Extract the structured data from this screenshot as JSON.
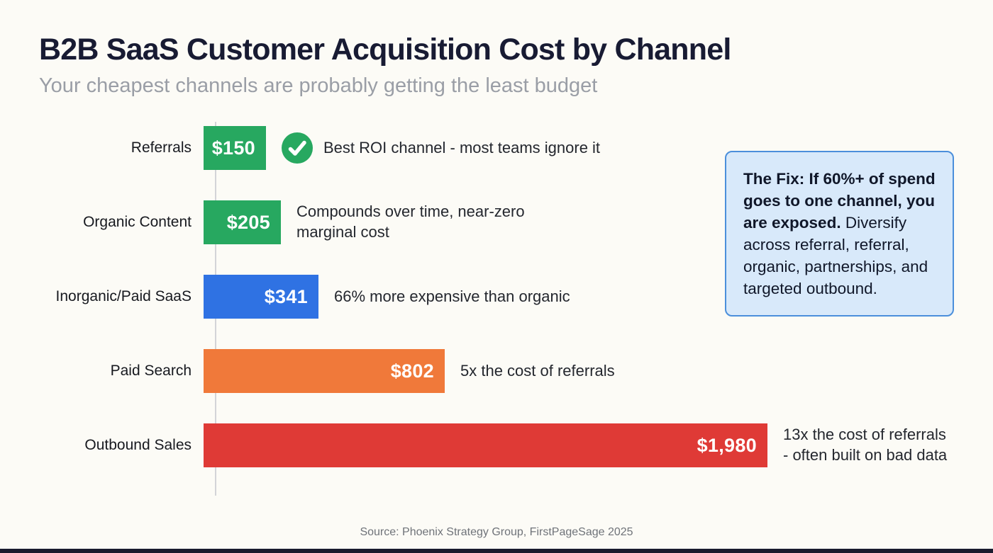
{
  "page": {
    "title": "B2B SaaS Customer Acquisition Cost by Channel",
    "subtitle": "Your cheapest channels are probably getting the least budget",
    "source": "Source: Phoenix Strategy Group, FirstPageSage 2025"
  },
  "colors": {
    "green": "#27a860",
    "blue": "#2f72e3",
    "orange": "#f0793a",
    "red": "#df3a36",
    "callout_bg": "#d8e9fa",
    "callout_border": "#4b8fdb",
    "title_text": "#181b33",
    "subtitle_text": "#9a9ea6"
  },
  "chart_data": {
    "type": "bar",
    "orientation": "horizontal",
    "title": "B2B SaaS Customer Acquisition Cost by Channel",
    "xlabel": "",
    "ylabel": "",
    "xlim": [
      0,
      1980
    ],
    "grid": false,
    "legend": "none",
    "categories": [
      "Referrals",
      "Organic Content",
      "Inorganic/Paid SaaS",
      "Paid Search",
      "Outbound Sales"
    ],
    "values": [
      150,
      205,
      341,
      802,
      1980
    ],
    "value_labels": [
      "$150",
      "$205",
      "$341",
      "$802",
      "$1,980"
    ],
    "bar_colors": [
      "#27a860",
      "#27a860",
      "#2f72e3",
      "#f0793a",
      "#df3a36"
    ],
    "annotation_icons": [
      "check-icon",
      "",
      "",
      "",
      ""
    ],
    "annotations": [
      "Best ROI channel - most teams ignore it",
      "Compounds over time, near-zero marginal cost",
      "66% more expensive than organic",
      "5x the cost of referrals",
      "13x the cost of referrals - often built on bad data"
    ]
  },
  "callout": {
    "bold_text": "The Fix: If 60%+ of spend goes to one channel, you are exposed.",
    "regular_text": "Diversify across referral, referral, organic, partnerships, and targeted outbound."
  }
}
